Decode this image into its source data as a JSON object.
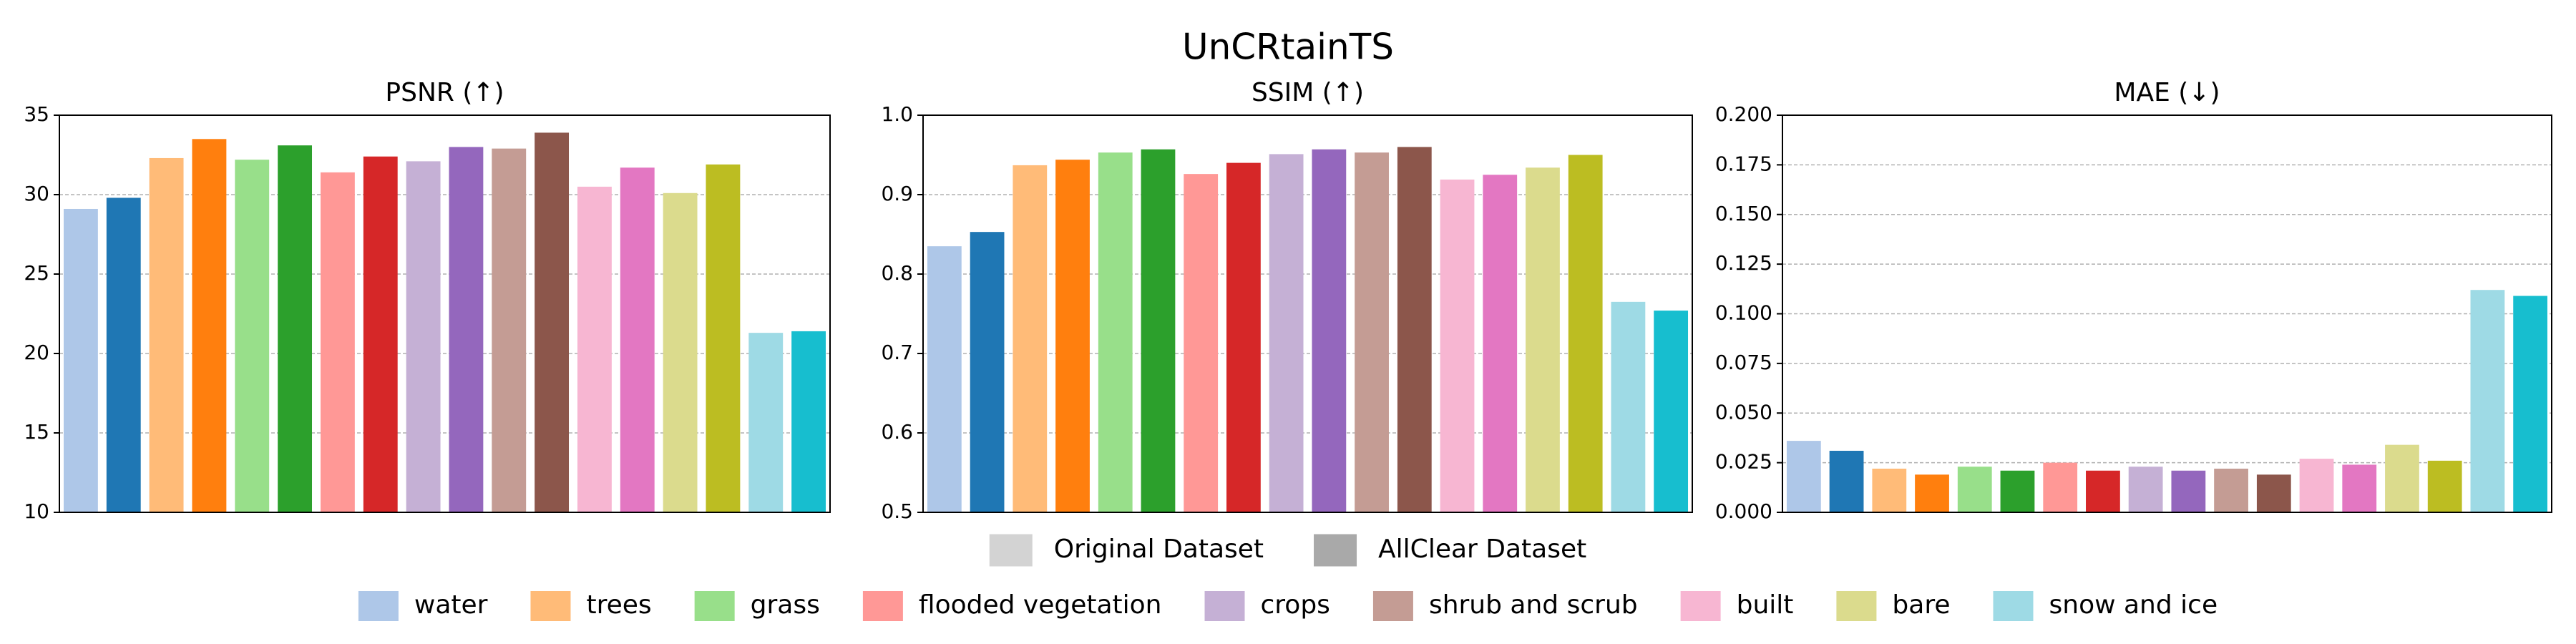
{
  "title": "UnCRtainTS",
  "datasets": [
    {
      "name": "Original Dataset",
      "color": "#d3d3d3"
    },
    {
      "name": "AllClear Dataset",
      "color": "#a9a9a9"
    }
  ],
  "classes": [
    {
      "name": "water",
      "color": "#aec7e8"
    },
    {
      "name": "trees",
      "color": "#ffbb78"
    },
    {
      "name": "grass",
      "color": "#98df8a"
    },
    {
      "name": "flooded vegetation",
      "color": "#ff9896"
    },
    {
      "name": "crops",
      "color": "#c5b0d5"
    },
    {
      "name": "shrub and scrub",
      "color": "#c49c94"
    },
    {
      "name": "built",
      "color": "#f7b6d2"
    },
    {
      "name": "bare",
      "color": "#dbdb8d"
    },
    {
      "name": "snow and ice",
      "color": "#9edae5"
    }
  ],
  "chart_data": [
    {
      "type": "bar",
      "title": "PSNR (↑)",
      "ylim": [
        10,
        35
      ],
      "yticks": [
        10,
        15,
        20,
        25,
        30,
        35
      ],
      "grid": true,
      "series": [
        {
          "colors": [
            "#aec7e8",
            "#ffbb78",
            "#98df8a",
            "#ff9896",
            "#c5b0d5",
            "#c49c94",
            "#f7b6d2",
            "#dbdb8d",
            "#9edae5"
          ],
          "values": [
            29.1,
            32.3,
            32.2,
            31.4,
            32.1,
            32.9,
            30.5,
            30.1,
            21.3
          ]
        },
        {
          "colors": [
            "#1f77b4",
            "#ff7f0e",
            "#2ca02c",
            "#d62728",
            "#9467bd",
            "#8c564b",
            "#e377c2",
            "#bcbd22",
            "#17becf"
          ],
          "values": [
            29.8,
            33.5,
            33.1,
            32.4,
            33.0,
            33.9,
            31.7,
            31.9,
            21.4
          ]
        }
      ]
    },
    {
      "type": "bar",
      "title": "SSIM (↑)",
      "ylim": [
        0.5,
        1.0
      ],
      "yticks": [
        0.5,
        0.6,
        0.7,
        0.8,
        0.9,
        {
          "value": 1.0,
          "label": "1.0"
        }
      ],
      "grid": true,
      "series": [
        {
          "colors": [
            "#aec7e8",
            "#ffbb78",
            "#98df8a",
            "#ff9896",
            "#c5b0d5",
            "#c49c94",
            "#f7b6d2",
            "#dbdb8d",
            "#9edae5"
          ],
          "values": [
            0.835,
            0.937,
            0.953,
            0.926,
            0.951,
            0.953,
            0.919,
            0.934,
            0.765
          ]
        },
        {
          "colors": [
            "#1f77b4",
            "#ff7f0e",
            "#2ca02c",
            "#d62728",
            "#9467bd",
            "#8c564b",
            "#e377c2",
            "#bcbd22",
            "#17becf"
          ],
          "values": [
            0.853,
            0.944,
            0.957,
            0.94,
            0.957,
            0.96,
            0.925,
            0.95,
            0.754
          ]
        }
      ]
    },
    {
      "type": "bar",
      "title": "MAE (↓)",
      "ylim": [
        0,
        0.2
      ],
      "yticks": [
        {
          "value": 0,
          "label": "0.000"
        },
        {
          "value": 0.025,
          "label": "0.025"
        },
        {
          "value": 0.05,
          "label": "0.050"
        },
        {
          "value": 0.075,
          "label": "0.075"
        },
        {
          "value": 0.1,
          "label": "0.100"
        },
        {
          "value": 0.125,
          "label": "0.125"
        },
        {
          "value": 0.15,
          "label": "0.150"
        },
        {
          "value": 0.175,
          "label": "0.175"
        },
        {
          "value": 0.2,
          "label": "0.200"
        }
      ],
      "grid": true,
      "series": [
        {
          "colors": [
            "#aec7e8",
            "#ffbb78",
            "#98df8a",
            "#ff9896",
            "#c5b0d5",
            "#c49c94",
            "#f7b6d2",
            "#dbdb8d",
            "#9edae5"
          ],
          "values": [
            0.036,
            0.022,
            0.023,
            0.025,
            0.023,
            0.022,
            0.027,
            0.034,
            0.112
          ]
        },
        {
          "colors": [
            "#1f77b4",
            "#ff7f0e",
            "#2ca02c",
            "#d62728",
            "#9467bd",
            "#8c564b",
            "#e377c2",
            "#bcbd22",
            "#17becf"
          ],
          "values": [
            0.031,
            0.019,
            0.021,
            0.021,
            0.021,
            0.019,
            0.024,
            0.026,
            0.109
          ]
        }
      ]
    }
  ]
}
